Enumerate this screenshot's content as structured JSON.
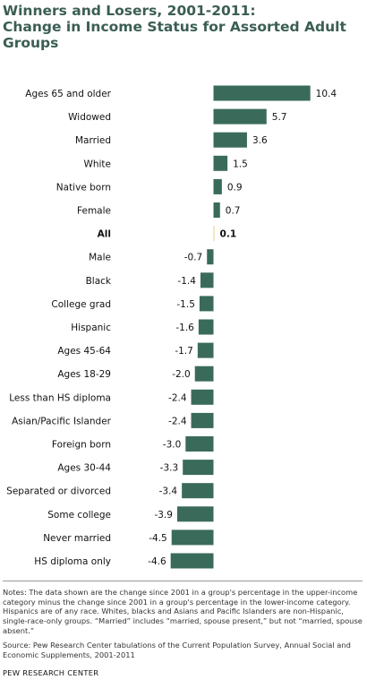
{
  "title_lines": [
    "Winners and Losers, 2001-2011:",
    "Change in Income Status for Assorted Adult",
    "Groups"
  ],
  "chart_data": {
    "type": "bar",
    "orientation": "horizontal",
    "title": "Winners and Losers, 2001-2011: Change in Income Status for Assorted Adult Groups",
    "categories": [
      "Ages 65 and older",
      "Widowed",
      "Married",
      "White",
      "Native born",
      "Female",
      "All",
      "Male",
      "Black",
      "College grad",
      "Hispanic",
      "Ages 45-64",
      "Ages 18-29",
      "Less than HS diploma",
      "Asian/Pacific Islander",
      "Foreign born",
      "Ages 30-44",
      "Separated or divorced",
      "Some college",
      "Never married",
      "HS diploma only"
    ],
    "values": [
      10.4,
      5.7,
      3.6,
      1.5,
      0.9,
      0.7,
      0.1,
      -0.7,
      -1.4,
      -1.5,
      -1.6,
      -1.7,
      -2.0,
      -2.4,
      -2.4,
      -3.0,
      -3.3,
      -3.4,
      -3.9,
      -4.5,
      -4.6
    ],
    "value_labels": [
      "10.4",
      "5.7",
      "3.6",
      "1.5",
      "0.9",
      "0.7",
      "0.1",
      "-0.7",
      "-1.4",
      "-1.5",
      "-1.6",
      "-1.7",
      "-2.0",
      "-2.4",
      "-2.4",
      "-3.0",
      "-3.3",
      "-3.4",
      "-3.9",
      "-4.5",
      "-4.6"
    ],
    "highlight_category": "All",
    "colors": {
      "bar": "#3a6b5a",
      "highlight_bar": "#e8d28a"
    }
  },
  "notes": "Notes: The data shown are the change since 2001 in a group's percentage in the upper-income category minus the change since 2001 in a group's percentage in the lower-income category. Hispanics are of any race. Whites, blacks and Asians and Pacific Islanders are non-Hispanic, single-race-only groups. “Married” includes “married, spouse present,” but not “married, spouse absent.”",
  "source": "Source: Pew Research Center tabulations of the Current Population Survey, Annual Social and Economic Supplements, 2001-2011",
  "organization": "PEW RESEARCH CENTER"
}
